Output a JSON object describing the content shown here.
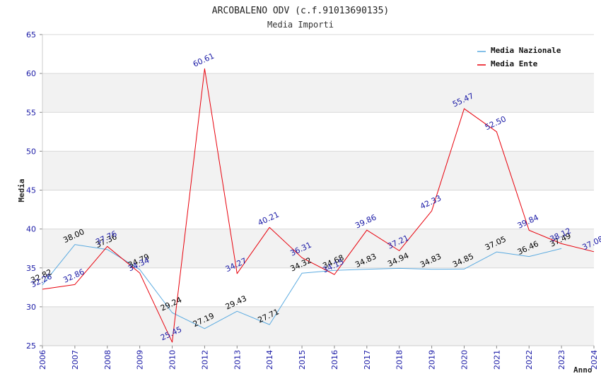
{
  "chart_data": {
    "type": "line",
    "title": "ARCOBALENO ODV (c.f.91013690135)",
    "subtitle": "Media Importi",
    "xlabel": "Anno",
    "ylabel": "Media",
    "ylim": [
      25,
      65
    ],
    "yticks": [
      "25",
      "30",
      "35",
      "40",
      "45",
      "50",
      "55",
      "60",
      "65"
    ],
    "categories": [
      "2006",
      "2007",
      "2008",
      "2009",
      "2010",
      "2012",
      "2013",
      "2014",
      "2015",
      "2016",
      "2017",
      "2018",
      "2019",
      "2020",
      "2021",
      "2022",
      "2023",
      "2024"
    ],
    "series": [
      {
        "name": "Media Nazionale",
        "color": "#5aaae0",
        "label_color": "#000000",
        "values": [
          32.82,
          38.0,
          37.36,
          34.79,
          29.24,
          27.19,
          29.43,
          27.71,
          34.32,
          34.68,
          34.83,
          34.94,
          34.83,
          34.85,
          37.05,
          36.46,
          37.49,
          null
        ],
        "labels": [
          "32.82",
          "38.00",
          "37.36",
          "34.79",
          "29.24",
          "27.19",
          "29.43",
          "27.71",
          "34.32",
          "34.68",
          "34.83",
          "34.94",
          "34.83",
          "34.85",
          "37.05",
          "36.46",
          "37.49",
          ""
        ]
      },
      {
        "name": "Media Ente",
        "color": "#e8000b",
        "label_color": "#1a1aa6",
        "values": [
          32.26,
          32.86,
          37.76,
          34.34,
          25.45,
          60.61,
          34.27,
          40.21,
          36.31,
          34.15,
          39.86,
          37.21,
          42.33,
          55.47,
          52.5,
          39.84,
          38.12,
          37.08
        ],
        "labels": [
          "32.26",
          "32.86",
          "37.76",
          "34.34",
          "25.45",
          "60.61",
          "34.27",
          "40.21",
          "36.31",
          "34.15",
          "39.86",
          "37.21",
          "42.33",
          "55.47",
          "52.50",
          "39.84",
          "38.12",
          "37.08"
        ]
      }
    ],
    "legend": "top-right",
    "grid": true
  }
}
